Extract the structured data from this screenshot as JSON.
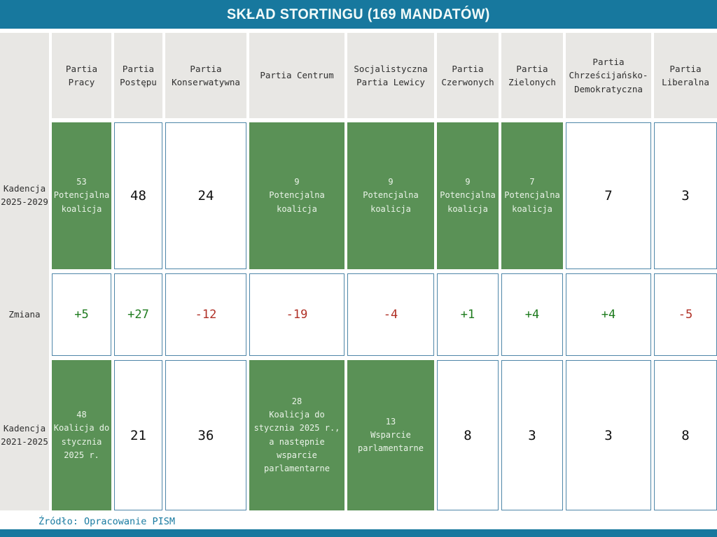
{
  "header": {
    "title": "SKŁAD STORTINGU (169 MANDATÓW)"
  },
  "footer": {
    "source": "Źródło: Opracowanie PISM"
  },
  "colors": {
    "accent_teal": "#17789E",
    "coalition_green": "#5A9156",
    "header_gray": "#E8E7E4",
    "cell_border_blue": "#4E86A8",
    "positive_change": "#1E7B1E",
    "negative_change": "#B03026"
  },
  "table": {
    "columns": [
      {
        "label": "Partia Pracy"
      },
      {
        "label": "Partia Postępu"
      },
      {
        "label": "Partia Konserwatywna"
      },
      {
        "label": "Partia Centrum"
      },
      {
        "label": "Socjalistyczna Partia Lewicy"
      },
      {
        "label": "Partia Czerwonych"
      },
      {
        "label": "Partia Zielonych"
      },
      {
        "label": "Partia Chrześcijańsko-Demokratyczna"
      },
      {
        "label": "Partia Liberalna"
      }
    ],
    "rows": [
      {
        "label": "Kadencja 2025-2029",
        "cells": [
          {
            "value": "53",
            "note": "Potencjalna koalicja"
          },
          {
            "value": "48"
          },
          {
            "value": "24"
          },
          {
            "value": "9",
            "note": "Potencjalna koalicja"
          },
          {
            "value": "9",
            "note": "Potencjalna koalicja"
          },
          {
            "value": "9",
            "note": "Potencjalna koalicja"
          },
          {
            "value": "7",
            "note": "Potencjalna koalicja"
          },
          {
            "value": "7"
          },
          {
            "value": "3"
          }
        ]
      },
      {
        "label": "Zmiana",
        "cells": [
          {
            "value": "+5"
          },
          {
            "value": "+27"
          },
          {
            "value": "-12"
          },
          {
            "value": "-19"
          },
          {
            "value": "-4"
          },
          {
            "value": "+1"
          },
          {
            "value": "+4"
          },
          {
            "value": "+4"
          },
          {
            "value": "-5"
          }
        ]
      },
      {
        "label": "Kadencja 2021-2025",
        "cells": [
          {
            "value": "48",
            "note": "Koalicja do stycznia 2025 r."
          },
          {
            "value": "21"
          },
          {
            "value": "36"
          },
          {
            "value": "28",
            "note": "Koalicja do stycznia 2025 r., a następnie wsparcie parlamentarne"
          },
          {
            "value": "13",
            "note": "Wsparcie parlamentarne"
          },
          {
            "value": "8"
          },
          {
            "value": "3"
          },
          {
            "value": "3"
          },
          {
            "value": "8"
          }
        ]
      }
    ]
  },
  "chart_data": {
    "type": "table",
    "title": "SKŁAD STORTINGU (169 MANDATÓW)",
    "total_seats": 169,
    "categories": [
      "Partia Pracy",
      "Partia Postępu",
      "Partia Konserwatywna",
      "Partia Centrum",
      "Socjalistyczna Partia Lewicy",
      "Partia Czerwonych",
      "Partia Zielonych",
      "Partia Chrześcijańsko-Demokratyczna",
      "Partia Liberalna"
    ],
    "series": [
      {
        "name": "Kadencja 2025-2029",
        "values": [
          53,
          48,
          24,
          9,
          9,
          9,
          7,
          7,
          3
        ]
      },
      {
        "name": "Zmiana",
        "values": [
          5,
          27,
          -12,
          -19,
          -4,
          1,
          4,
          4,
          -5
        ]
      },
      {
        "name": "Kadencja 2021-2025",
        "values": [
          48,
          21,
          36,
          28,
          13,
          8,
          3,
          3,
          8
        ]
      }
    ],
    "highlighted_green_2025_2029": [
      "Partia Pracy",
      "Partia Centrum",
      "Socjalistyczna Partia Lewicy",
      "Partia Czerwonych",
      "Partia Zielonych"
    ],
    "highlighted_green_2021_2025": [
      "Partia Pracy",
      "Partia Centrum",
      "Socjalistyczna Partia Lewicy"
    ],
    "source": "Źródło: Opracowanie PISM"
  }
}
